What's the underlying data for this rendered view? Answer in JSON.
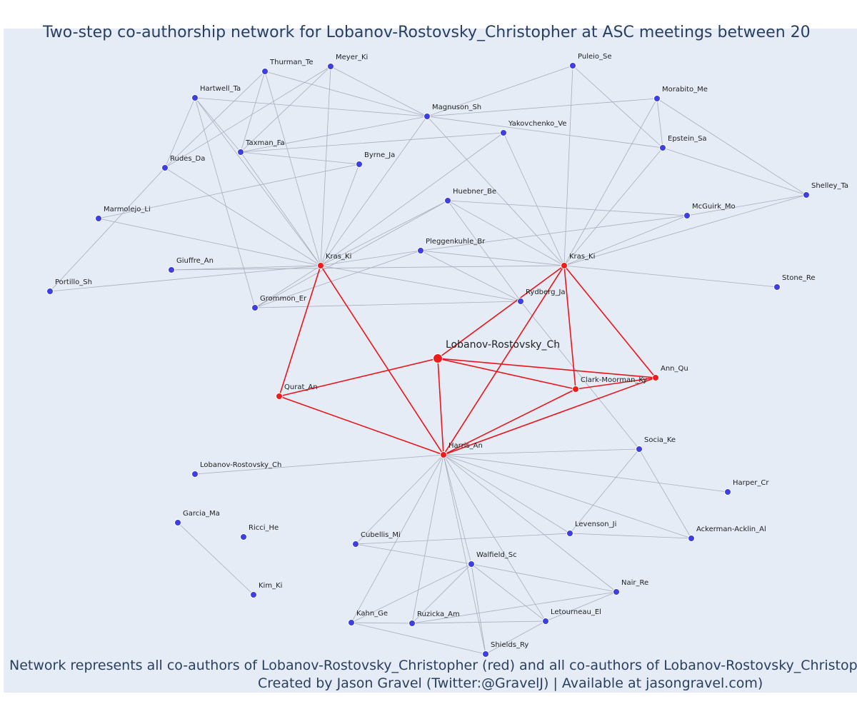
{
  "title": "Two-step co-authorship network for Lobanov-Rostovsky_Christopher at ASC meetings between 20",
  "nodes": [
    {
      "label": "Lobanov-Rostovsky_Ch",
      "color": "#ef1c1c"
    },
    {
      "label": "Kras_Ki",
      "color": "#ef1c1c"
    },
    {
      "label": "Kras_Ki",
      "color": "#ef1c1c"
    },
    {
      "label": "Qurat_An",
      "color": "#ef1c1c"
    },
    {
      "label": "Harris_An",
      "color": "#ef1c1c"
    },
    {
      "label": "Clark-Moorman_Ky",
      "color": "#ef1c1c"
    },
    {
      "label": "Ann_Qu",
      "color": "#ef1c1c"
    },
    {
      "label": "Rydberg_Ja",
      "color": "#3d3fe0"
    },
    {
      "label": "Thurman_Te",
      "color": "#3d3fe0"
    },
    {
      "label": "Meyer_Ki",
      "color": "#3d3fe0"
    },
    {
      "label": "Hartwell_Ta",
      "color": "#3d3fe0"
    },
    {
      "label": "Magnuson_Sh",
      "color": "#3d3fe0"
    },
    {
      "label": "Yakovchenko_Ve",
      "color": "#3d3fe0"
    },
    {
      "label": "Puleio_Se",
      "color": "#3d3fe0"
    },
    {
      "label": "Morabito_Me",
      "color": "#3d3fe0"
    },
    {
      "label": "Epstein_Sa",
      "color": "#3d3fe0"
    },
    {
      "label": "Shelley_Ta",
      "color": "#3d3fe0"
    },
    {
      "label": "Taxman_Fa",
      "color": "#3d3fe0"
    },
    {
      "label": "Rudes_Da",
      "color": "#3d3fe0"
    },
    {
      "label": "Byrne_Ja",
      "color": "#3d3fe0"
    },
    {
      "label": "Huebner_Be",
      "color": "#3d3fe0"
    },
    {
      "label": "McGuirk_Mo",
      "color": "#3d3fe0"
    },
    {
      "label": "Marmolejo_Li",
      "color": "#3d3fe0"
    },
    {
      "label": "Pleggenkuhle_Br",
      "color": "#3d3fe0"
    },
    {
      "label": "Giuffre_An",
      "color": "#3d3fe0"
    },
    {
      "label": "Portillo_Sh",
      "color": "#3d3fe0"
    },
    {
      "label": "Grommon_Er",
      "color": "#3d3fe0"
    },
    {
      "label": "Stone_Re",
      "color": "#3d3fe0"
    },
    {
      "label": "Lobanov-Rostovsky_Ch",
      "color": "#3d3fe0"
    },
    {
      "label": "Socia_Ke",
      "color": "#3d3fe0"
    },
    {
      "label": "Harper_Cr",
      "color": "#3d3fe0"
    },
    {
      "label": "Garcia_Ma",
      "color": "#3d3fe0"
    },
    {
      "label": "Ricci_He",
      "color": "#3d3fe0"
    },
    {
      "label": "Cubellis_Mi",
      "color": "#3d3fe0"
    },
    {
      "label": "Levenson_Ji",
      "color": "#3d3fe0"
    },
    {
      "label": "Ackerman-Acklin_Al",
      "color": "#3d3fe0"
    },
    {
      "label": "Walfield_Sc",
      "color": "#3d3fe0"
    },
    {
      "label": "Kim_Ki",
      "color": "#3d3fe0"
    },
    {
      "label": "Nair_Re",
      "color": "#3d3fe0"
    },
    {
      "label": "Kahn_Ge",
      "color": "#3d3fe0"
    },
    {
      "label": "Ruzicka_Am",
      "color": "#3d3fe0"
    },
    {
      "label": "Letourneau_El",
      "color": "#3d3fe0"
    },
    {
      "label": "Shields_Ry",
      "color": "#3d3fe0"
    }
  ],
  "footer": {
    "line1": "Network represents all co-authors of Lobanov-Rostovsky_Christopher (red) and all co-authors of Lobanov-Rostovsky_Christophe",
    "line2": "Created by Jason Gravel (Twitter:@GravelJ) | Available at jasongravel.com)"
  }
}
